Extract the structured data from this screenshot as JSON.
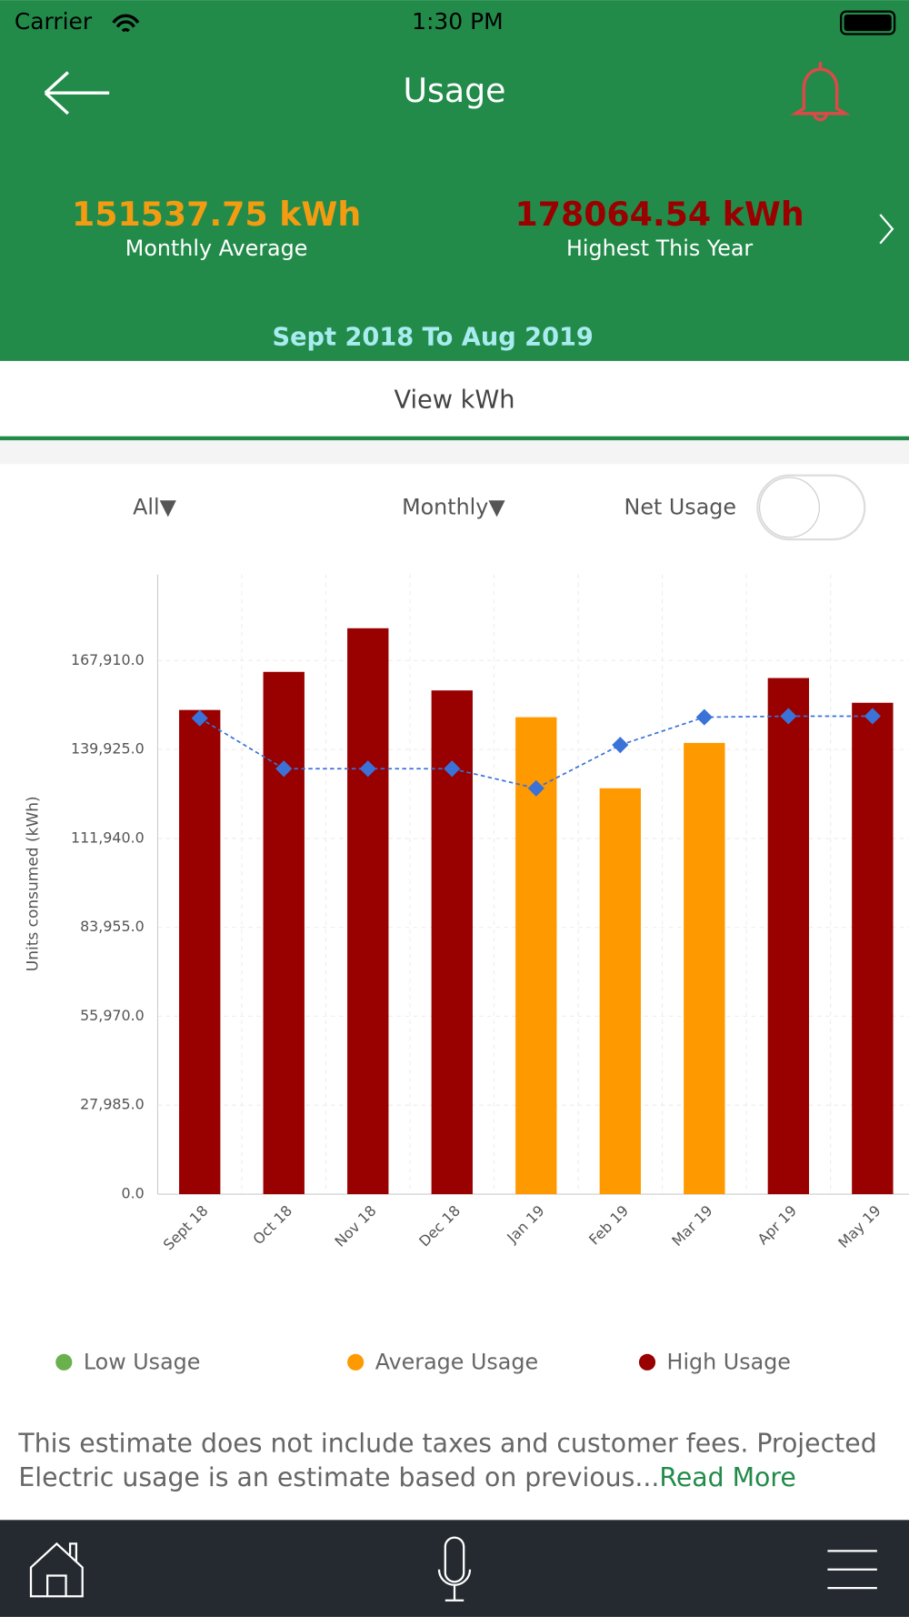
{
  "status_bar": {
    "carrier": "Carrier",
    "time": "1:30 PM"
  },
  "header": {
    "title": "Usage"
  },
  "summary": [
    {
      "value": "151537.75 kWh",
      "label": "Monthly Average"
    },
    {
      "value": "178064.54 kWh",
      "label": "Highest This Year"
    }
  ],
  "period": "Sept 2018 To Aug 2019",
  "tab": "View kWh",
  "filters": {
    "category": "All▼",
    "interval": "Monthly▼",
    "toggle_label": "Net Usage"
  },
  "chart_data": {
    "type": "bar",
    "y_label": "Units consumed (kWh)",
    "categories": [
      "Sept 18",
      "Oct 18",
      "Nov 18",
      "Dec 18",
      "Jan 19",
      "Feb 19",
      "Mar 19",
      "Apr 19",
      "May 19"
    ],
    "series": [
      {
        "type": "bar",
        "colors": [
          "#990000",
          "#990000",
          "#990000",
          "#990000",
          "#ff9900",
          "#ff9900",
          "#ff9900",
          "#990000",
          "#990000"
        ],
        "values": [
          152350,
          164340,
          178065,
          158500,
          150080,
          127710,
          141980,
          162400,
          154620
        ]
      },
      {
        "type": "line",
        "color": "#3a72d8",
        "values": [
          149760,
          133870,
          133870,
          133870,
          127710,
          141330,
          150080,
          150400,
          150400
        ]
      }
    ],
    "ylim": [
      0,
      195000
    ],
    "yticks": [
      {
        "value": 0,
        "label": "0.0"
      },
      {
        "value": 27985,
        "label": "27,985.0"
      },
      {
        "value": 55970,
        "label": "55,970.0"
      },
      {
        "value": 83955,
        "label": "83,955.0"
      },
      {
        "value": 111940,
        "label": "111,940.0"
      },
      {
        "value": 139925,
        "label": "139,925.0"
      },
      {
        "value": 167910,
        "label": "167,910.0"
      }
    ],
    "grid": true,
    "legend": [
      {
        "label": "Low Usage",
        "color": "#6ab04c"
      },
      {
        "label": "Average Usage",
        "color": "#ff9900"
      },
      {
        "label": "High Usage",
        "color": "#990000"
      }
    ]
  },
  "disclaimer": {
    "line1": "This estimate does not include taxes and customer fees. Projected",
    "line2": "Electric usage is an estimate based on previous...",
    "link": "Read More"
  }
}
